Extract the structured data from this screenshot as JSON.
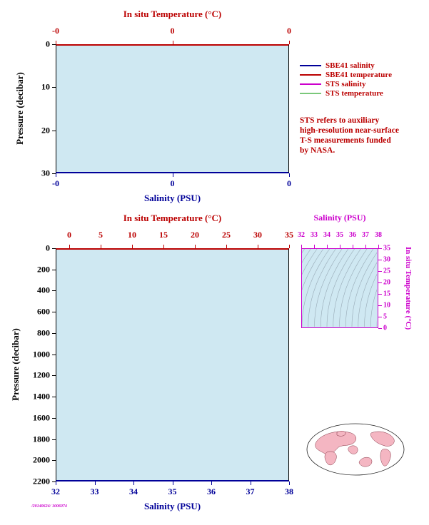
{
  "colors": {
    "red": "#bb0000",
    "navy": "#000099",
    "magenta": "#cc00cc",
    "green": "#7ac87a",
    "fill": "#cfe8f2",
    "contour": "#98aab6",
    "land": "#f4b6c2"
  },
  "top_panel": {
    "top_axis": {
      "title": "In situ Temperature (°C)",
      "ticks": [
        "-0",
        "0",
        "0"
      ]
    },
    "left_axis": {
      "title": "Pressure (decibar)",
      "ticks": [
        "0",
        "10",
        "20",
        "30"
      ]
    },
    "bottom_axis": {
      "title": "Salinity (PSU)",
      "ticks": [
        "-0",
        "0",
        "0"
      ]
    },
    "legend": [
      {
        "label": "SBE41 salinity",
        "color": "#000099"
      },
      {
        "label": "SBE41 temperature",
        "color": "#bb0000"
      },
      {
        "label": "STS salinity",
        "color": "#cc00cc"
      },
      {
        "label": "STS temperature",
        "color": "#7ac87a"
      }
    ],
    "note_lines": [
      "STS refers to auxiliary",
      "high-resolution near-surface",
      "T-S measurements funded",
      "by NASA."
    ]
  },
  "bottom_panel": {
    "top_axis": {
      "title": "In situ Temperature (°C)",
      "ticks": [
        "0",
        "5",
        "10",
        "15",
        "20",
        "25",
        "30",
        "35"
      ]
    },
    "left_axis": {
      "title": "Pressure (decibar)",
      "ticks": [
        "0",
        "200",
        "400",
        "600",
        "800",
        "1000",
        "1200",
        "1400",
        "1600",
        "1800",
        "2000",
        "2200"
      ]
    },
    "bottom_axis": {
      "title": "Salinity (PSU)",
      "ticks": [
        "32",
        "33",
        "34",
        "35",
        "36",
        "37",
        "38"
      ]
    }
  },
  "ts_inset": {
    "top_axis": {
      "title": "Salinity (PSU)",
      "ticks": [
        "32",
        "33",
        "34",
        "35",
        "36",
        "37",
        "38"
      ]
    },
    "right_axis": {
      "title": "In situ Temperature (°C)",
      "ticks": [
        "35",
        "30",
        "25",
        "20",
        "15",
        "10",
        "5",
        "0"
      ]
    }
  },
  "watermark": "/20140624/ 1006074",
  "chart_data": [
    {
      "type": "line",
      "panel": "near-surface profile",
      "x_axis_top": {
        "label": "In situ Temperature (°C)",
        "ticks": [
          "-0",
          "0",
          "0"
        ],
        "color": "#bb0000"
      },
      "x_axis_bottom": {
        "label": "Salinity (PSU)",
        "ticks": [
          "-0",
          "0",
          "0"
        ],
        "color": "#000099"
      },
      "y_axis": {
        "label": "Pressure (decibar)",
        "ticks": [
          0,
          10,
          20,
          30
        ],
        "range": [
          0,
          30
        ],
        "inverted": true
      },
      "series": [
        {
          "name": "SBE41 salinity",
          "color": "#000099",
          "values": []
        },
        {
          "name": "SBE41 temperature",
          "color": "#bb0000",
          "values": []
        },
        {
          "name": "STS salinity",
          "color": "#cc00cc",
          "values": []
        },
        {
          "name": "STS temperature",
          "color": "#7ac87a",
          "values": []
        }
      ],
      "note": "No profile curves visible; axes degenerate (-0 to 0), only plot background shown."
    },
    {
      "type": "line",
      "panel": "full-depth profile",
      "x_axis_top": {
        "label": "In situ Temperature (°C)",
        "ticks": [
          0,
          5,
          10,
          15,
          20,
          25,
          30,
          35
        ],
        "range": [
          0,
          35
        ],
        "color": "#bb0000"
      },
      "x_axis_bottom": {
        "label": "Salinity (PSU)",
        "ticks": [
          32,
          33,
          34,
          35,
          36,
          37,
          38
        ],
        "range": [
          32,
          38
        ],
        "color": "#000099"
      },
      "y_axis": {
        "label": "Pressure (decibar)",
        "ticks": [
          0,
          200,
          400,
          600,
          800,
          1000,
          1200,
          1400,
          1600,
          1800,
          2000,
          2200
        ],
        "range": [
          0,
          2200
        ],
        "inverted": true
      },
      "series": [],
      "note": "No profile curves visible; only plot background shown."
    },
    {
      "type": "scatter",
      "panel": "T-S diagram inset",
      "x_axis_top": {
        "label": "Salinity (PSU)",
        "ticks": [
          32,
          33,
          34,
          35,
          36,
          37,
          38
        ],
        "range": [
          32,
          38
        ],
        "color": "#cc00cc"
      },
      "y_axis_right": {
        "label": "In situ Temperature (°C)",
        "ticks": [
          35,
          30,
          25,
          20,
          15,
          10,
          5,
          0
        ],
        "range": [
          0,
          35
        ],
        "color": "#cc00cc"
      },
      "overlay": "grey potential-density isopycnal contour curves",
      "points": []
    },
    {
      "type": "map",
      "panel": "float location",
      "description": "small global elliptical map with pink landmasses, no visible float marker"
    }
  ]
}
